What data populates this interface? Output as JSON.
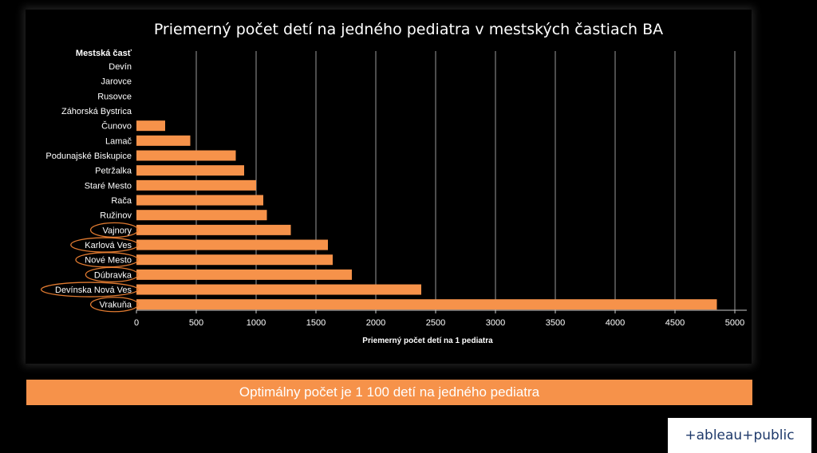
{
  "chart_data": {
    "type": "bar",
    "orientation": "horizontal",
    "title": "Priemerný počet detí na jedného pediatra v mestských častiach BA",
    "row_header": "Mestská časť",
    "xlabel": "Priemerný počet detí na 1 pediatra",
    "xlim": [
      0,
      5000
    ],
    "xticks": [
      "0",
      "500",
      "1000",
      "1500",
      "2000",
      "2500",
      "3000",
      "3500",
      "4000",
      "4500",
      "5000"
    ],
    "grid": true,
    "bar_color": "#f6924a",
    "highlight_color": "#e07a30",
    "categories": [
      "Devín",
      "Jarovce",
      "Rusovce",
      "Záhorská Bystrica",
      "Čunovo",
      "Lamač",
      "Podunajské Biskupice",
      "Petržalka",
      "Staré Mesto",
      "Rača",
      "Ružinov",
      "Vajnory",
      "Karlová Ves",
      "Nové Mesto",
      "Dúbravka",
      "Devínska Nová Ves",
      "Vrakuňa"
    ],
    "values": [
      0,
      0,
      0,
      0,
      240,
      450,
      830,
      900,
      1000,
      1060,
      1090,
      1290,
      1600,
      1640,
      1800,
      2380,
      4850
    ],
    "highlighted": [
      "Vajnory",
      "Karlová Ves",
      "Nové Mesto",
      "Dúbravka",
      "Devínska Nová Ves",
      "Vrakuňa"
    ]
  },
  "banner": {
    "text": "Optimálny počet je 1 100 detí na jedného pediatra"
  },
  "logo": {
    "text": "+ableau+public"
  }
}
